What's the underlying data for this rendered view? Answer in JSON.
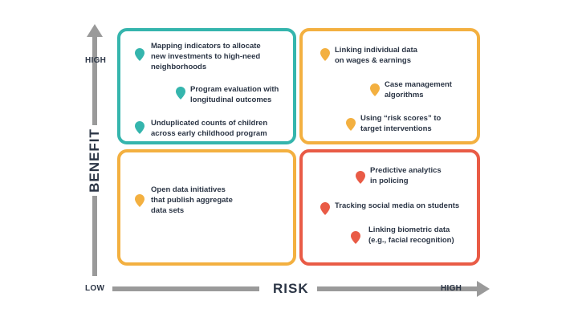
{
  "axes": {
    "y_title": "BENEFIT",
    "x_title": "RISK",
    "y_high": "HIGH",
    "low": "LOW",
    "x_high": "HIGH"
  },
  "colors": {
    "teal": "#35b5ad",
    "yellow": "#f3b040",
    "red": "#e95b46",
    "axis": "#9a9a9a",
    "text": "#2b3545"
  },
  "quadrants": {
    "high_benefit_low_risk": {
      "items": [
        {
          "line1": "Mapping indicators to allocate",
          "line2": "new investments to high-need",
          "line3": "neighborhoods"
        },
        {
          "line1": "Program evaluation with",
          "line2": "longitudinal outcomes"
        },
        {
          "line1": "Unduplicated counts of children",
          "line2": "across early childhood program"
        }
      ]
    },
    "high_benefit_high_risk": {
      "items": [
        {
          "line1": "Linking individual data",
          "line2": "on wages & earnings"
        },
        {
          "line1": "Case management",
          "line2": "algorithms"
        },
        {
          "line1": "Using “risk scores” to",
          "line2": "target interventions"
        }
      ]
    },
    "low_benefit_low_risk": {
      "items": [
        {
          "line1": "Open data initiatives",
          "line2": "that publish aggregate",
          "line3": "data sets"
        }
      ]
    },
    "low_benefit_high_risk": {
      "items": [
        {
          "line1": "Predictive analytics",
          "line2": "in policing"
        },
        {
          "line1": "Tracking social media on students"
        },
        {
          "line1": "Linking biometric data",
          "line2": "(e.g., facial recognition)"
        }
      ]
    }
  }
}
